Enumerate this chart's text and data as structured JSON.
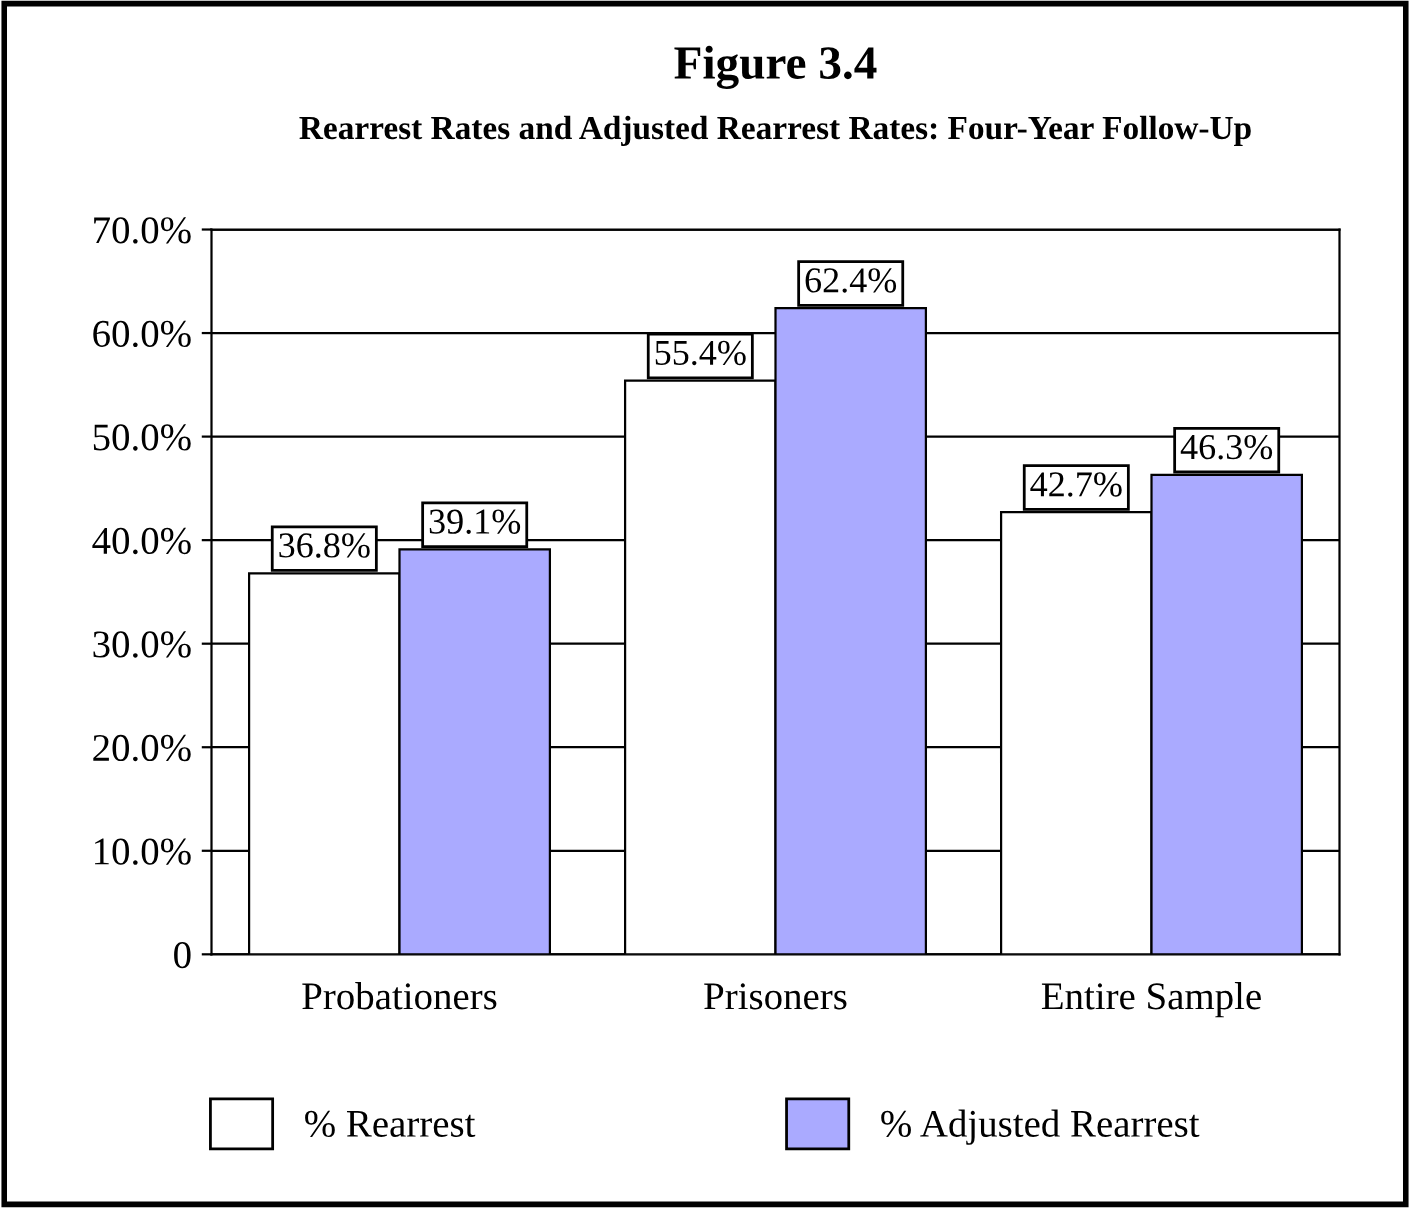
{
  "chart_data": {
    "type": "bar",
    "title": "Figure 3.4",
    "subtitle": "Rearrest Rates and Adjusted Rearrest Rates: Four-Year Follow-Up",
    "categories": [
      "Probationers",
      "Prisoners",
      "Entire Sample"
    ],
    "series": [
      {
        "name": "% Rearrest",
        "color": "#ffffff",
        "values": [
          36.8,
          55.4,
          42.7
        ],
        "value_labels": [
          "36.8%",
          "55.4%",
          "42.7%"
        ]
      },
      {
        "name": "% Adjusted Rearrest",
        "color": "#aaaaff",
        "values": [
          39.1,
          62.4,
          46.3
        ],
        "value_labels": [
          "39.1%",
          "62.4%",
          "46.3%"
        ]
      }
    ],
    "ylim": [
      0,
      70
    ],
    "yticks": [
      {
        "value": 0,
        "label": "0"
      },
      {
        "value": 10,
        "label": "10.0%"
      },
      {
        "value": 20,
        "label": "20.0%"
      },
      {
        "value": 30,
        "label": "30.0%"
      },
      {
        "value": 40,
        "label": "40.0%"
      },
      {
        "value": 50,
        "label": "50.0%"
      },
      {
        "value": 60,
        "label": "60.0%"
      },
      {
        "value": 70,
        "label": "70.0%"
      }
    ],
    "grid": "y",
    "legend": "bottom"
  }
}
